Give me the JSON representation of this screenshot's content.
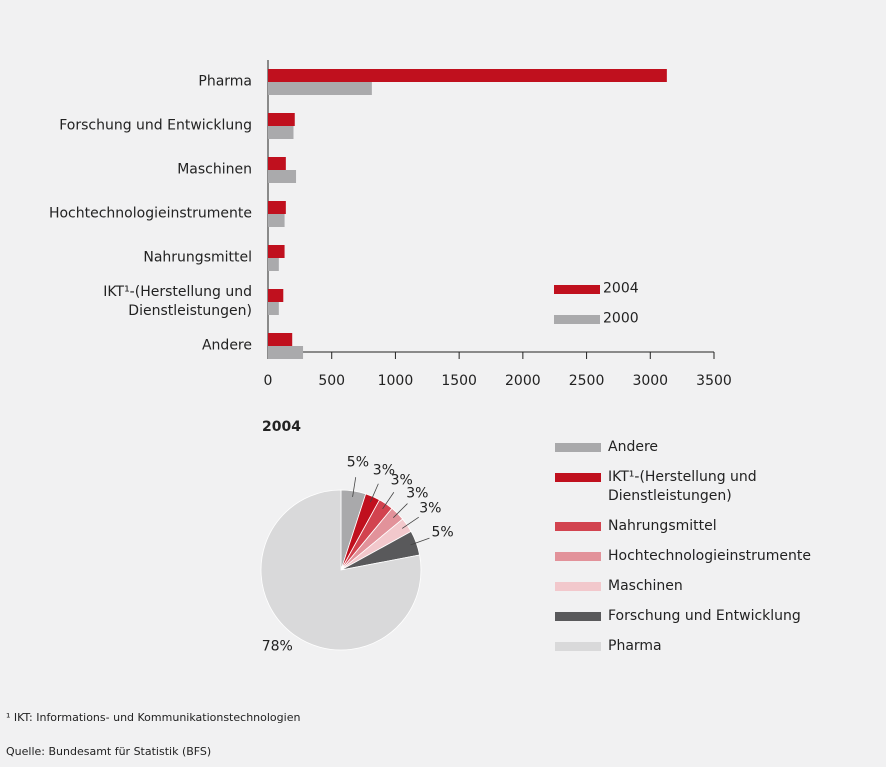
{
  "chart_data": [
    {
      "type": "bar",
      "orientation": "horizontal",
      "categories": [
        "Pharma",
        "Forschung und Entwicklung",
        "Maschinen",
        "Hochtechnologieinstrumente",
        "Nahrungsmittel",
        "IKT¹-(Herstellung und\nDienstleistungen)",
        "Andere"
      ],
      "series": [
        {
          "name": "2004",
          "color": "#c0101e",
          "values": [
            3130,
            210,
            140,
            140,
            130,
            120,
            190
          ]
        },
        {
          "name": "2000",
          "color": "#aaaaac",
          "values": [
            815,
            200,
            220,
            130,
            85,
            85,
            275
          ]
        }
      ],
      "xlim": [
        0,
        3500
      ],
      "xticks": [
        0,
        500,
        1000,
        1500,
        2000,
        2500,
        3000,
        3500
      ],
      "legend": "lower right"
    },
    {
      "type": "pie",
      "title": "2004",
      "categories": [
        "Andere",
        "IKT¹-(Herstellung und\nDienstleistungen)",
        "Nahrungsmittel",
        "Hochtechnologieinstrumente",
        "Maschinen",
        "Forschung und Entwicklung",
        "Pharma"
      ],
      "values": [
        5,
        3,
        3,
        3,
        3,
        5,
        78
      ],
      "value_labels": [
        "5%",
        "3%",
        "3%",
        "3%",
        "3%",
        "5%",
        "78%"
      ],
      "colors": [
        "#a9a9ab",
        "#c0101e",
        "#d2434f",
        "#e2929a",
        "#f2c8cc",
        "#59595b",
        "#d9d9da"
      ],
      "legend": "right"
    }
  ],
  "footnote": "¹ IKT: Informations- und Kommunikationstechnologien",
  "source": "Quelle: Bundesamt für Statistik (BFS)"
}
